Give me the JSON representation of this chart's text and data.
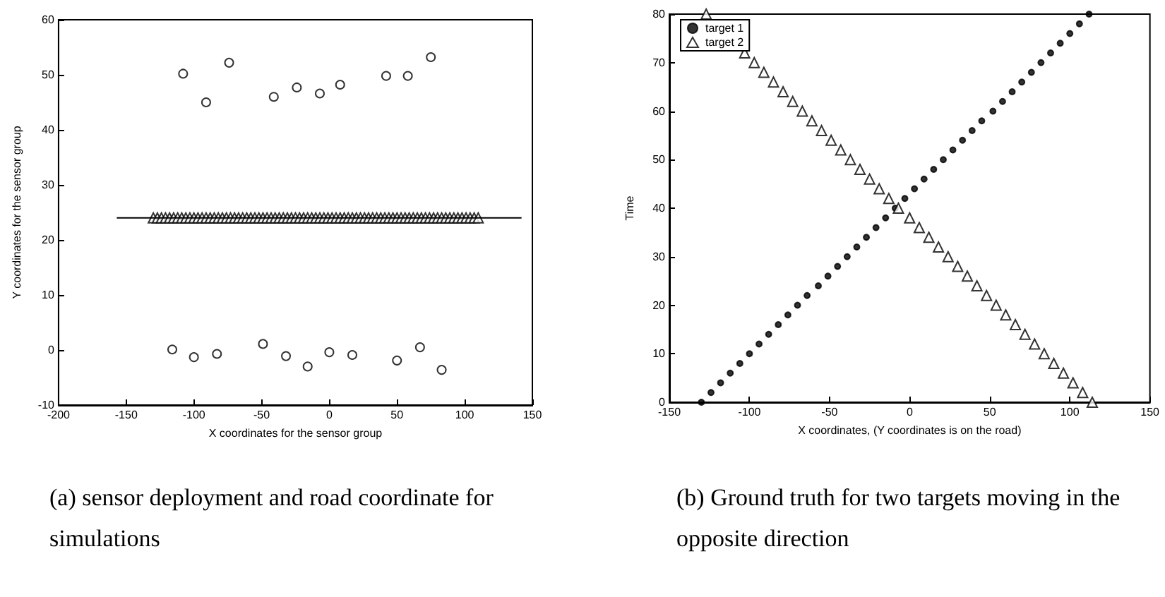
{
  "chart_data": [
    {
      "type": "scatter",
      "title": "(a) sensor deployment and road coordinate for simulations",
      "xlabel": "X coordinates for the sensor group",
      "ylabel": "Y coordinates for the sensor group",
      "xlim": [
        -200,
        150
      ],
      "xticks": [
        -200,
        -150,
        -100,
        -50,
        0,
        50,
        100,
        150
      ],
      "ylim": [
        -10,
        60
      ],
      "yticks": [
        -10,
        0,
        10,
        20,
        30,
        40,
        50,
        60
      ],
      "grid": false,
      "legend": false,
      "series": [
        {
          "color": "#000000",
          "marker": "circle",
          "x": [
            -108,
            -91,
            -74,
            -41,
            -24,
            -7,
            8,
            42,
            58,
            75,
            -116,
            -100,
            -83,
            -49,
            -32,
            -16,
            0,
            17,
            50,
            67,
            83
          ],
          "values": [
            50.2,
            45,
            52.2,
            46,
            47.7,
            46.6,
            48.2,
            49.8,
            49.8,
            53.2,
            0.1,
            -1.3,
            -0.7,
            1.1,
            -1.1,
            -3,
            -0.4,
            -0.9,
            -1.9,
            0.5,
            -3.6
          ]
        },
        {
          "type": "line",
          "color": "#000000",
          "marker": "none",
          "line_style": "solid",
          "x": [
            -157,
            142
          ],
          "values": [
            24,
            24
          ]
        },
        {
          "color": "#000000",
          "marker": "triangle",
          "x": [
            -130,
            -127,
            -124,
            -121,
            -118,
            -115,
            -112,
            -109,
            -106,
            -103,
            -100,
            -97,
            -94,
            -91,
            -88,
            -85,
            -82,
            -79,
            -76,
            -73,
            -70,
            -67,
            -64,
            -61,
            -58,
            -55,
            -52,
            -49,
            -46,
            -43,
            -40,
            -37,
            -34,
            -31,
            -28,
            -25,
            -22,
            -19,
            -16,
            -13,
            -10,
            -7,
            -4,
            -1,
            2,
            5,
            8,
            11,
            14,
            17,
            20,
            23,
            26,
            29,
            32,
            35,
            38,
            41,
            44,
            47,
            50,
            53,
            56,
            59,
            62,
            65,
            68,
            71,
            74,
            77,
            80,
            83,
            86,
            89,
            92,
            95,
            98,
            101,
            104,
            107,
            110
          ],
          "values": [
            24,
            24,
            24,
            24,
            24,
            24,
            24,
            24,
            24,
            24,
            24,
            24,
            24,
            24,
            24,
            24,
            24,
            24,
            24,
            24,
            24,
            24,
            24,
            24,
            24,
            24,
            24,
            24,
            24,
            24,
            24,
            24,
            24,
            24,
            24,
            24,
            24,
            24,
            24,
            24,
            24,
            24,
            24,
            24,
            24,
            24,
            24,
            24,
            24,
            24,
            24,
            24,
            24,
            24,
            24,
            24,
            24,
            24,
            24,
            24,
            24,
            24,
            24,
            24,
            24,
            24,
            24,
            24,
            24,
            24,
            24,
            24,
            24,
            24,
            24,
            24,
            24,
            24,
            24,
            24,
            24
          ]
        }
      ]
    },
    {
      "type": "scatter",
      "title": "(b) Ground truth for two targets moving in the opposite direction",
      "xlabel": "X coordinates, (Y coordinates is on the road)",
      "ylabel": "Time",
      "xlim": [
        -150,
        150
      ],
      "xticks": [
        -150,
        -100,
        -50,
        0,
        50,
        100,
        150
      ],
      "ylim": [
        0,
        80
      ],
      "yticks": [
        0,
        10,
        20,
        30,
        40,
        50,
        60,
        70,
        80
      ],
      "grid": false,
      "legend": "top left",
      "series": [
        {
          "name": "target 1",
          "color": "#000000",
          "marker": "circle",
          "x": [
            -130,
            -124,
            -118,
            -112,
            -106,
            -100,
            -94,
            -88,
            -82,
            -76,
            -70,
            -64,
            -57,
            -51,
            -45,
            -39,
            -33,
            -27,
            -21,
            -15,
            -9,
            -3,
            3,
            9,
            15,
            21,
            27,
            33,
            39,
            45,
            52,
            58,
            64,
            70,
            76,
            82,
            88,
            94,
            100,
            106,
            112
          ],
          "values": [
            0,
            2,
            4,
            6,
            8,
            10,
            12,
            14,
            16,
            18,
            20,
            22,
            24,
            26,
            28,
            30,
            32,
            34,
            36,
            38,
            40,
            42,
            44,
            46,
            48,
            50,
            52,
            54,
            56,
            58,
            60,
            62,
            64,
            66,
            68,
            70,
            72,
            74,
            76,
            78,
            80
          ]
        },
        {
          "name": "target 2",
          "color": "#000000",
          "marker": "triangle",
          "x": [
            114,
            108,
            102,
            96,
            90,
            84,
            78,
            72,
            66,
            60,
            54,
            48,
            42,
            36,
            30,
            24,
            18,
            12,
            6,
            0,
            -7,
            -13,
            -19,
            -25,
            -31,
            -37,
            -43,
            -49,
            -55,
            -61,
            -67,
            -73,
            -79,
            -85,
            -91,
            -97,
            -103,
            -109,
            -115,
            -121,
            -127
          ],
          "values": [
            0,
            2,
            4,
            6,
            8,
            10,
            12,
            14,
            16,
            18,
            20,
            22,
            24,
            26,
            28,
            30,
            32,
            34,
            36,
            38,
            40,
            42,
            44,
            46,
            48,
            50,
            52,
            54,
            56,
            58,
            60,
            62,
            64,
            66,
            68,
            70,
            72,
            null,
            null,
            null,
            80
          ]
        }
      ]
    }
  ]
}
